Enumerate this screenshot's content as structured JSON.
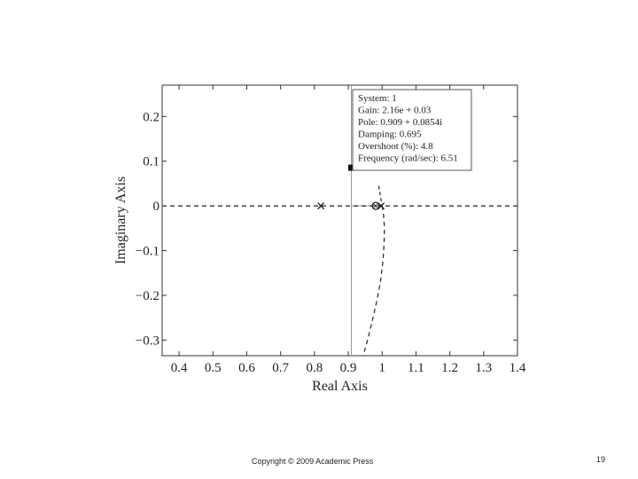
{
  "chart_data": {
    "type": "scatter",
    "title": "",
    "xlabel": "Real Axis",
    "ylabel": "Imaginary Axis",
    "xlim": [
      0.35,
      1.4
    ],
    "ylim": [
      -0.335,
      0.27
    ],
    "xticks": [
      0.4,
      0.5,
      0.6,
      0.7,
      0.8,
      0.9,
      1.0,
      1.1,
      1.2,
      1.3,
      1.4
    ],
    "xtick_labels": [
      "0.4",
      "0.5",
      "0.6",
      "0.7",
      "0.8",
      "0.9",
      "1",
      "1.1",
      "1.2",
      "1.3",
      "1.4"
    ],
    "yticks": [
      0.2,
      0.1,
      0,
      -0.1,
      -0.2,
      -0.3
    ],
    "ytick_labels": [
      "0.2",
      "0.1",
      "0",
      "−0.1",
      "−0.2",
      "−0.3"
    ],
    "grid": false,
    "poles": [
      {
        "x": 0.819,
        "y": 0
      },
      {
        "x": 0.997,
        "y": 0
      }
    ],
    "zeros": [
      {
        "x": 0.981,
        "y": 0
      }
    ],
    "selected_point": {
      "x": 0.909,
      "y": 0.0854
    },
    "real_axis_locus": [
      {
        "x": [
          0.35,
          1.4
        ],
        "y": [
          0,
          0
        ]
      }
    ],
    "locus_branch": {
      "x": [
        1.0,
        1.004,
        1.007,
        1.006,
        1.003,
        0.995,
        0.985,
        0.97,
        0.957,
        0.944
      ],
      "y": [
        0.0,
        -0.02,
        -0.05,
        -0.08,
        -0.12,
        -0.17,
        -0.21,
        -0.26,
        -0.3,
        -0.335
      ]
    },
    "locus_branch_upper": {
      "x": [
        0.99,
        1.0
      ],
      "y": [
        0.045,
        0.0
      ]
    },
    "damping_line": {
      "x": [
        0.909,
        0.909
      ],
      "y": [
        0.27,
        -0.335
      ]
    },
    "tooltip": {
      "lines": [
        "System: 1",
        "Gain: 2.16e + 0.03",
        "Pole: 0.909 + 0.0854i",
        "Damping: 0.695",
        "Overshoot (%): 4.8",
        "Frequency (rad/sec): 6.51"
      ]
    }
  },
  "footer": {
    "copyright": "Copyright © 2009 Academic Press",
    "page_number": "19"
  }
}
